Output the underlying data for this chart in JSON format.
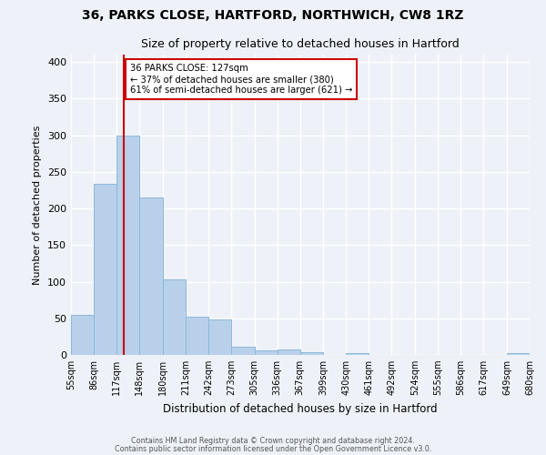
{
  "title_line1": "36, PARKS CLOSE, HARTFORD, NORTHWICH, CW8 1RZ",
  "title_line2": "Size of property relative to detached houses in Hartford",
  "xlabel": "Distribution of detached houses by size in Hartford",
  "ylabel": "Number of detached properties",
  "bin_edges": [
    55,
    86,
    117,
    148,
    180,
    211,
    242,
    273,
    305,
    336,
    367,
    399,
    430,
    461,
    492,
    524,
    555,
    586,
    617,
    649,
    680
  ],
  "bin_labels": [
    "55sqm",
    "86sqm",
    "117sqm",
    "148sqm",
    "180sqm",
    "211sqm",
    "242sqm",
    "273sqm",
    "305sqm",
    "336sqm",
    "367sqm",
    "399sqm",
    "430sqm",
    "461sqm",
    "492sqm",
    "524sqm",
    "555sqm",
    "586sqm",
    "617sqm",
    "649sqm",
    "680sqm"
  ],
  "counts": [
    55,
    233,
    300,
    215,
    103,
    52,
    49,
    11,
    6,
    7,
    4,
    0,
    3,
    0,
    0,
    0,
    0,
    0,
    0,
    3
  ],
  "bar_color": "#b8d0ea",
  "bar_edge_color": "#8db8d8",
  "property_line_x": 127,
  "property_line_color": "#cc0000",
  "annotation_text": "36 PARKS CLOSE: 127sqm\n← 37% of detached houses are smaller (380)\n61% of semi-detached houses are larger (621) →",
  "annotation_box_color": "#ffffff",
  "annotation_box_edge": "#cc0000",
  "ylim": [
    0,
    410
  ],
  "yticks": [
    0,
    50,
    100,
    150,
    200,
    250,
    300,
    350,
    400
  ],
  "background_color": "#eef2f8",
  "grid_color": "#ffffff",
  "footer_line1": "Contains HM Land Registry data © Crown copyright and database right 2024.",
  "footer_line2": "Contains public sector information licensed under the Open Government Licence v3.0."
}
